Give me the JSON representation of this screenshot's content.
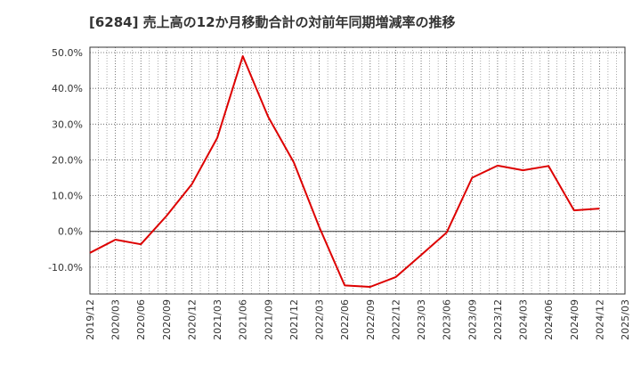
{
  "chart_data": {
    "type": "line",
    "title": "[6284]  売上高の12か月移動合計の対前年同期増減率の推移",
    "xlabel": "",
    "ylabel": "",
    "ylim": [
      -17.5,
      51.5
    ],
    "y_ticks": [
      -10,
      0,
      10,
      20,
      30,
      40,
      50
    ],
    "y_tick_labels": [
      "-10.0%",
      "0.0%",
      "10.0%",
      "20.0%",
      "30.0%",
      "40.0%",
      "50.0%"
    ],
    "x_tick_labels": [
      "2019/12",
      "2020/03",
      "2020/06",
      "2020/09",
      "2020/12",
      "2021/03",
      "2021/06",
      "2021/09",
      "2021/12",
      "2022/03",
      "2022/06",
      "2022/09",
      "2022/12",
      "2023/03",
      "2023/06",
      "2023/09",
      "2023/12",
      "2024/03",
      "2024/06",
      "2024/09",
      "2024/12",
      "2025/03"
    ],
    "grid": true,
    "series": [
      {
        "name": "増減率",
        "color": "#dd0000",
        "x": [
          "2019/12",
          "2020/03",
          "2020/06",
          "2020/09",
          "2020/12",
          "2021/03",
          "2021/06",
          "2021/09",
          "2021/12",
          "2022/03",
          "2022/06",
          "2022/09",
          "2022/12",
          "2023/03",
          "2023/06",
          "2023/09",
          "2023/12",
          "2024/03",
          "2024/06",
          "2024/09",
          "2024/12"
        ],
        "values": [
          -6.0,
          -2.3,
          -3.6,
          4.3,
          13.2,
          26.2,
          49.0,
          32.0,
          19.3,
          1.2,
          -15.1,
          -15.5,
          -12.8,
          -6.6,
          -0.3,
          15.0,
          18.4,
          17.1,
          18.3,
          5.9,
          6.4
        ]
      }
    ]
  }
}
